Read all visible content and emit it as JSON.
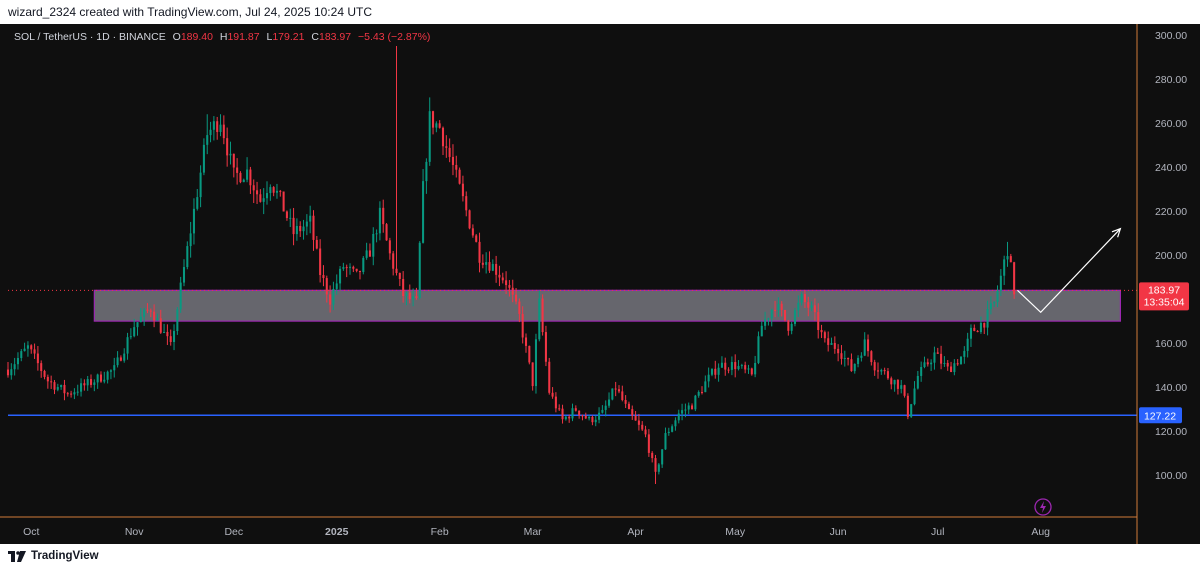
{
  "header": {
    "attribution": "wizard_2324 created with TradingView.com, Jul 24, 2025 10:24 UTC"
  },
  "legend": {
    "symbol": "SOL / TetherUS · 1D · BINANCE",
    "o_label": "O",
    "o_value": "189.40",
    "h_label": "H",
    "h_value": "191.87",
    "l_label": "L",
    "l_value": "179.21",
    "c_label": "C",
    "c_value": "183.97",
    "change": "−5.43 (−2.87%)"
  },
  "footer": {
    "brand": "TradingView"
  },
  "colors": {
    "up": "#089981",
    "down": "#f23645",
    "background": "#0f0f0f",
    "zone_fill": "#8c8c96",
    "zone_border": "#9c27b0",
    "support_line": "#2962ff",
    "axis_line": "#d17b3a"
  },
  "chart_data": {
    "type": "candlestick",
    "title": "SOL / TetherUS · 1D · BINANCE",
    "x_labels": [
      "Oct",
      "Nov",
      "Dec",
      "2025",
      "Feb",
      "Mar",
      "Apr",
      "May",
      "Jun",
      "Jul",
      "Aug"
    ],
    "x_label_dates": [
      "2024-10-01",
      "2024-11-01",
      "2024-12-01",
      "2025-01-01",
      "2025-02-01",
      "2025-03-01",
      "2025-04-01",
      "2025-05-01",
      "2025-06-01",
      "2025-07-01",
      "2025-08-01"
    ],
    "y_ticks": [
      100,
      120,
      140,
      160,
      180,
      200,
      220,
      240,
      260,
      280,
      300
    ],
    "y_tick_labels": [
      "100.00",
      "120.00",
      "140.00",
      "160.00",
      "180.00",
      "200.00",
      "220.00",
      "240.00",
      "260.00",
      "280.00",
      "300.00"
    ],
    "ylim": [
      81,
      305
    ],
    "x_range": [
      "2024-09-24",
      "2025-08-30"
    ],
    "price_path": [
      [
        "2024-09-24",
        148
      ],
      [
        "2024-09-30",
        158
      ],
      [
        "2024-10-06",
        143
      ],
      [
        "2024-10-12",
        137
      ],
      [
        "2024-10-20",
        143
      ],
      [
        "2024-10-26",
        148
      ],
      [
        "2024-11-01",
        168
      ],
      [
        "2024-11-06",
        176
      ],
      [
        "2024-11-10",
        164
      ],
      [
        "2024-11-12",
        158
      ],
      [
        "2024-11-15",
        185
      ],
      [
        "2024-11-19",
        220
      ],
      [
        "2024-11-23",
        255
      ],
      [
        "2024-11-27",
        262
      ],
      [
        "2024-12-01",
        236
      ],
      [
        "2024-12-05",
        238
      ],
      [
        "2024-12-09",
        225
      ],
      [
        "2024-12-12",
        234
      ],
      [
        "2024-12-15",
        225
      ],
      [
        "2024-12-19",
        210
      ],
      [
        "2024-12-24",
        215
      ],
      [
        "2024-12-27",
        192
      ],
      [
        "2024-12-30",
        180
      ],
      [
        "2025-01-03",
        195
      ],
      [
        "2025-01-07",
        190
      ],
      [
        "2025-01-11",
        202
      ],
      [
        "2025-01-14",
        218
      ],
      [
        "2025-01-17",
        200
      ],
      [
        "2025-01-21",
        182
      ],
      [
        "2025-01-25",
        178
      ],
      [
        "2025-01-27",
        230
      ],
      [
        "2025-01-29",
        262
      ],
      [
        "2025-02-01",
        258
      ],
      [
        "2025-02-05",
        240
      ],
      [
        "2025-02-09",
        220
      ],
      [
        "2025-02-13",
        200
      ],
      [
        "2025-02-17",
        195
      ],
      [
        "2025-02-21",
        188
      ],
      [
        "2025-02-25",
        172
      ],
      [
        "2025-03-01",
        142
      ],
      [
        "2025-03-03",
        178
      ],
      [
        "2025-03-06",
        138
      ],
      [
        "2025-03-10",
        125
      ],
      [
        "2025-03-14",
        130
      ],
      [
        "2025-03-18",
        125
      ],
      [
        "2025-03-22",
        128
      ],
      [
        "2025-03-26",
        140
      ],
      [
        "2025-03-30",
        128
      ],
      [
        "2025-04-04",
        118
      ],
      [
        "2025-04-07",
        100
      ],
      [
        "2025-04-10",
        118
      ],
      [
        "2025-04-14",
        128
      ],
      [
        "2025-04-18",
        132
      ],
      [
        "2025-04-22",
        142
      ],
      [
        "2025-04-26",
        150
      ],
      [
        "2025-05-01",
        150
      ],
      [
        "2025-05-06",
        145
      ],
      [
        "2025-05-09",
        168
      ],
      [
        "2025-05-13",
        178
      ],
      [
        "2025-05-17",
        168
      ],
      [
        "2025-05-21",
        180
      ],
      [
        "2025-05-24",
        175
      ],
      [
        "2025-05-28",
        160
      ],
      [
        "2025-06-01",
        158
      ],
      [
        "2025-06-05",
        148
      ],
      [
        "2025-06-09",
        160
      ],
      [
        "2025-06-12",
        150
      ],
      [
        "2025-06-16",
        145
      ],
      [
        "2025-06-20",
        140
      ],
      [
        "2025-06-22",
        128
      ],
      [
        "2025-06-25",
        145
      ],
      [
        "2025-06-30",
        155
      ],
      [
        "2025-07-04",
        148
      ],
      [
        "2025-07-09",
        155
      ],
      [
        "2025-07-11",
        165
      ],
      [
        "2025-07-15",
        170
      ],
      [
        "2025-07-18",
        178
      ],
      [
        "2025-07-20",
        190
      ],
      [
        "2025-07-22",
        203
      ],
      [
        "2025-07-24",
        184
      ]
    ],
    "high_spikes": [
      [
        "2025-01-19",
        295
      ],
      [
        "2024-11-23",
        264
      ],
      [
        "2025-04-07",
        96
      ],
      [
        "2025-07-22",
        206
      ]
    ],
    "last_price": 183.97,
    "last_price_label": "183.97",
    "countdown": "13:35:04",
    "support_level": 127.22,
    "support_label": "127.22",
    "zone": {
      "from": "2024-10-20",
      "to": "2025-08-25",
      "low": 170,
      "high": 184
    },
    "projection": [
      [
        "2025-07-25",
        184
      ],
      [
        "2025-08-01",
        174
      ],
      [
        "2025-08-25",
        212
      ]
    ],
    "grid": false,
    "legend_position": "top-left"
  }
}
